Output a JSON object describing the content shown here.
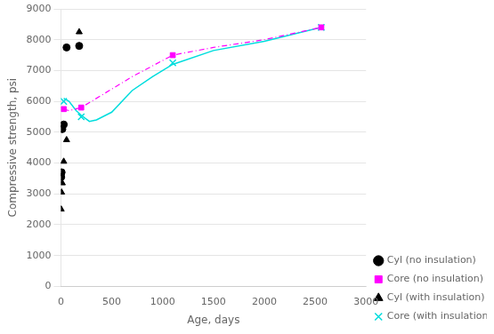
{
  "chart_data": {
    "type": "scatter",
    "xlabel": "Age, days",
    "ylabel": "Compressive strength, psi",
    "xlim": [
      0,
      3000
    ],
    "ylim": [
      0,
      9000
    ],
    "xticks": [
      0,
      500,
      1000,
      1500,
      2000,
      2500,
      3000
    ],
    "yticks": [
      0,
      1000,
      2000,
      3000,
      4000,
      5000,
      6000,
      7000,
      8000,
      9000
    ],
    "grid": "y",
    "legend": "lower right",
    "series": [
      {
        "name": "Cyl (no insulation)",
        "color": "#000000",
        "marker": "circle",
        "x": [
          3,
          7,
          14,
          28,
          56,
          180
        ],
        "values": [
          3550,
          3700,
          5100,
          5250,
          7750,
          7800
        ]
      },
      {
        "name": "Core (no insulation)",
        "color": "#ff00ff",
        "marker": "square",
        "line_style": "dashdot",
        "x": [
          28,
          200,
          1100,
          2560
        ],
        "values": [
          5750,
          5800,
          7500,
          8400
        ],
        "curve_x": [
          28,
          80,
          200,
          400,
          700,
          1100,
          1500,
          2000,
          2560
        ],
        "curve_values": [
          5750,
          5700,
          5800,
          6200,
          6800,
          7500,
          7750,
          8000,
          8400
        ]
      },
      {
        "name": "Cyl (with insulation)",
        "color": "#000000",
        "marker": "triangle",
        "x": [
          3,
          7,
          14,
          28,
          56,
          180
        ],
        "values": [
          2500,
          3050,
          3350,
          4050,
          4750,
          8250
        ]
      },
      {
        "name": "Core (with insulation)",
        "color": "#00dddd",
        "marker": "x",
        "line_style": "solid",
        "x": [
          28,
          200,
          1100,
          2560
        ],
        "values": [
          6000,
          5500,
          7250,
          8400
        ],
        "curve_x": [
          28,
          80,
          150,
          200,
          280,
          350,
          500,
          700,
          900,
          1100,
          1500,
          2000,
          2560
        ],
        "curve_values": [
          6100,
          6000,
          5700,
          5550,
          5350,
          5400,
          5650,
          6350,
          6800,
          7200,
          7650,
          7950,
          8400
        ]
      }
    ]
  }
}
